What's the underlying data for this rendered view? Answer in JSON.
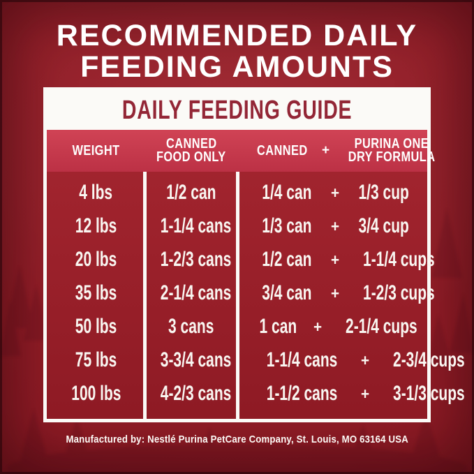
{
  "page": {
    "heading": {
      "line1": "RECOMMENDED DAILY",
      "line2": "FEEDING AMOUNTS"
    },
    "footer": "Manufactured by: Nestlé Purina PetCare Company, St. Louis, MO 63164 USA"
  },
  "guide": {
    "title": "DAILY FEEDING GUIDE",
    "header": {
      "weight": "WEIGHT",
      "canned_only": [
        "CANNED",
        "FOOD ONLY"
      ],
      "canned": "CANNED",
      "plus": "+",
      "dry": [
        "PURINA ONE",
        "DRY FORMULA"
      ]
    },
    "rows": [
      {
        "weight": "4 lbs",
        "canned_only": "1/2 can",
        "canned": "1/4 can",
        "plus": "+",
        "dry": "1/3 cup"
      },
      {
        "weight": "12 lbs",
        "canned_only": "1-1/4 cans",
        "canned": "1/3 can",
        "plus": "+",
        "dry": "3/4 cup"
      },
      {
        "weight": "20 lbs",
        "canned_only": "1-2/3 cans",
        "canned": "1/2 can",
        "plus": "+",
        "dry": "1-1/4 cups"
      },
      {
        "weight": "35 lbs",
        "canned_only": "2-1/4 cans",
        "canned": "3/4 can",
        "plus": "+",
        "dry": "1-2/3 cups"
      },
      {
        "weight": "50 lbs",
        "canned_only": "3 cans",
        "canned": "1 can",
        "plus": "+",
        "dry": "2-1/4 cups"
      },
      {
        "weight": "75 lbs",
        "canned_only": "3-3/4 cans",
        "canned": "1-1/4 cans",
        "plus": "+",
        "dry": "2-3/4 cups"
      },
      {
        "weight": "100 lbs",
        "canned_only": "4-2/3 cans",
        "canned": "1-1/2 cans",
        "plus": "+",
        "dry": "3-1/3 cups"
      }
    ]
  },
  "chart_data": {
    "type": "table",
    "title": "DAILY FEEDING GUIDE",
    "page_heading": "RECOMMENDED DAILY FEEDING AMOUNTS",
    "columns": [
      "WEIGHT",
      "CANNED FOOD ONLY",
      "CANNED",
      "PURINA ONE DRY FORMULA"
    ],
    "combo_separator": "+",
    "rows": [
      [
        "4 lbs",
        "1/2 can",
        "1/4 can",
        "1/3 cup"
      ],
      [
        "12 lbs",
        "1-1/4 cans",
        "1/3 can",
        "3/4 cup"
      ],
      [
        "20 lbs",
        "1-2/3 cans",
        "1/2 can",
        "1-1/4 cups"
      ],
      [
        "35 lbs",
        "2-1/4 cans",
        "3/4 can",
        "1-2/3 cups"
      ],
      [
        "50 lbs",
        "3 cans",
        "1 can",
        "2-1/4 cups"
      ],
      [
        "75 lbs",
        "3-3/4 cans",
        "1-1/4 cans",
        "2-3/4 cups"
      ],
      [
        "100 lbs",
        "4-2/3 cans",
        "1-1/2 cans",
        "3-1/3 cups"
      ]
    ],
    "footnote": "Manufactured by: Nestlé Purina PetCare Company, St. Louis, MO 63164 USA"
  },
  "colors": {
    "page_background": "#8E1B25",
    "table_body_background": "#9B202B",
    "header_band": "#C43A4C",
    "title_band": "#FBFAF7",
    "title_text": "#932636",
    "text_white": "#FFFFFF"
  }
}
